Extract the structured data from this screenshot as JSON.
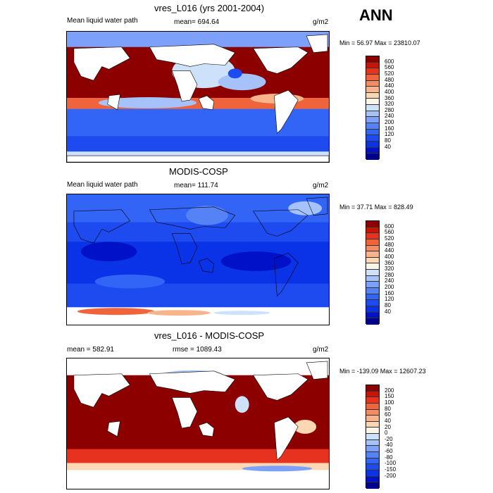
{
  "season": "ANN",
  "colors": {
    "abs_scale": [
      "#00008c",
      "#0011c8",
      "#0a32e6",
      "#1e4bf0",
      "#3264f5",
      "#5582f5",
      "#7da0fa",
      "#a5c3fa",
      "#cde1fa",
      "#fdf4e8",
      "#fcd7b4",
      "#fab48c",
      "#f58c64",
      "#f0643c",
      "#e6321e",
      "#c81405",
      "#8c0000"
    ],
    "diff_scale": [
      "#00008c",
      "#0011c8",
      "#0a32e6",
      "#1e4bf0",
      "#3264f5",
      "#5582f5",
      "#7da0fa",
      "#a5c3fa",
      "#cde1fa",
      "#fdf4e8",
      "#fcd7b4",
      "#fab48c",
      "#f58c64",
      "#f0643c",
      "#e6321e",
      "#c81405",
      "#8c0000"
    ]
  },
  "panels": [
    {
      "title": "vres_L016 (yrs 2001-2004)",
      "left_label": "Mean liquid water path",
      "center_label": "mean= 694.64",
      "units": "g/m2",
      "minmax": "Min =  56.97 Max = 23810.07",
      "cbar_labels": [
        "600",
        "560",
        "520",
        "480",
        "440",
        "400",
        "360",
        "320",
        "280",
        "240",
        "200",
        "160",
        "120",
        "80",
        "40"
      ]
    },
    {
      "title": "MODIS-COSP",
      "left_label": "Mean liquid water path",
      "center_label": "mean= 111.74",
      "units": "g/m2",
      "minmax": "Min =  37.71 Max = 828.49",
      "cbar_labels": [
        "600",
        "560",
        "520",
        "480",
        "440",
        "400",
        "360",
        "320",
        "280",
        "240",
        "200",
        "160",
        "120",
        "80",
        "40"
      ]
    },
    {
      "title": "vres_L016 - MODIS-COSP",
      "left_label": "mean = 582.91",
      "center_label": "rmse = 1089.43",
      "units": "g/m2",
      "minmax": "Min = -139.09 Max = 12607.23",
      "cbar_labels": [
        "200",
        "150",
        "100",
        "80",
        "60",
        "40",
        "20",
        "0",
        "-20",
        "-40",
        "-60",
        "-80",
        "-100",
        "-150",
        "-200"
      ]
    }
  ]
}
